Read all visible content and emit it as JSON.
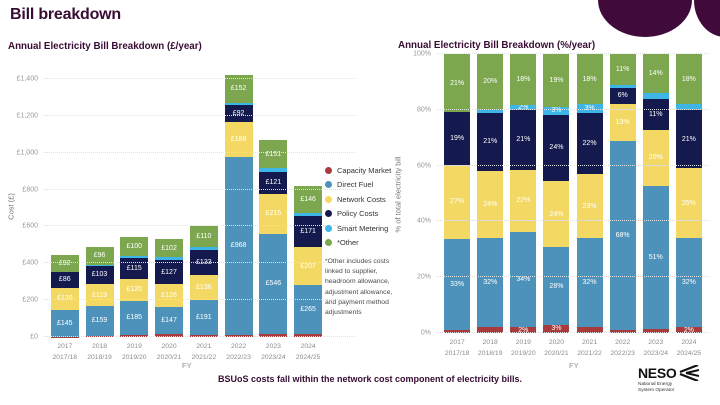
{
  "header": {
    "title": "Bill breakdown"
  },
  "footer": {
    "text": "BSUoS costs fall within the network cost component of electricity bills."
  },
  "logo": {
    "name": "NESO",
    "subtitle": "National Energy\nSystem Operator"
  },
  "colors": {
    "capacity_market": "#a93b3d",
    "direct_fuel": "#4d92bb",
    "network_costs": "#f3d964",
    "policy_costs": "#141a4e",
    "smart_metering": "#3db5e6",
    "other": "#7ca74f",
    "accent_plum": "#380c33",
    "decoration": "#400b3a"
  },
  "legend": {
    "items": [
      {
        "key": "capacity_market",
        "label": "Capacity Market"
      },
      {
        "key": "direct_fuel",
        "label": "Direct Fuel"
      },
      {
        "key": "network_costs",
        "label": "Network Costs"
      },
      {
        "key": "policy_costs",
        "label": "Policy Costs"
      },
      {
        "key": "smart_metering",
        "label": "Smart Metering"
      },
      {
        "key": "other",
        "label": "*Other"
      }
    ],
    "note": "*Other includes costs\nlinked to supplier,\nheadroom allowance,\nadjustment allowance,\nand payment method\nadjustments"
  },
  "chart_data": [
    {
      "type": "bar",
      "stacked": true,
      "normalize": false,
      "title": "Annual Electricity Bill Breakdown (£/year)",
      "xlabel": "FY",
      "ylabel": "Cost (£)",
      "ymax": 1400,
      "yticks": [
        {
          "v": 0,
          "t": "£0"
        },
        {
          "v": 200,
          "t": "£200"
        },
        {
          "v": 400,
          "t": "£400"
        },
        {
          "v": 600,
          "t": "£600"
        },
        {
          "v": 800,
          "t": "£800"
        },
        {
          "v": 1000,
          "t": "£1,000"
        },
        {
          "v": 1200,
          "t": "£1,200"
        },
        {
          "v": 1400,
          "t": "£1,400"
        }
      ],
      "categories": [
        [
          "2017",
          "2017/18"
        ],
        [
          "2018",
          "2018/19"
        ],
        [
          "2019",
          "2019/20"
        ],
        [
          "2020",
          "2020/21"
        ],
        [
          "2021",
          "2021/22"
        ],
        [
          "2022",
          "2022/23"
        ],
        [
          "2023",
          "2023/24"
        ],
        [
          "2024",
          "2024/25"
        ]
      ],
      "bars": [
        [
          {
            "k": "capacity_market",
            "v": 2,
            "l": ""
          },
          {
            "k": "direct_fuel",
            "v": 145,
            "l": "£145"
          },
          {
            "k": "network_costs",
            "v": 120,
            "l": "£120"
          },
          {
            "k": "policy_costs",
            "v": 86,
            "l": "£86"
          },
          {
            "k": "other",
            "v": 92,
            "l": "£92"
          }
        ],
        [
          {
            "k": "capacity_market",
            "v": 8,
            "l": ""
          },
          {
            "k": "direct_fuel",
            "v": 159,
            "l": "£159"
          },
          {
            "k": "network_costs",
            "v": 119,
            "l": "£119"
          },
          {
            "k": "policy_costs",
            "v": 103,
            "l": "£103"
          },
          {
            "k": "smart_metering",
            "v": 4,
            "l": ""
          },
          {
            "k": "other",
            "v": 96,
            "l": "£96"
          }
        ],
        [
          {
            "k": "capacity_market",
            "v": 11,
            "l": ""
          },
          {
            "k": "direct_fuel",
            "v": 185,
            "l": "£185"
          },
          {
            "k": "network_costs",
            "v": 120,
            "l": "£120"
          },
          {
            "k": "policy_costs",
            "v": 115,
            "l": "£115"
          },
          {
            "k": "smart_metering",
            "v": 11,
            "l": ""
          },
          {
            "k": "other",
            "v": 100,
            "l": "£100"
          }
        ],
        [
          {
            "k": "capacity_market",
            "v": 16,
            "l": ""
          },
          {
            "k": "direct_fuel",
            "v": 147,
            "l": "£147"
          },
          {
            "k": "network_costs",
            "v": 126,
            "l": "£126"
          },
          {
            "k": "policy_costs",
            "v": 127,
            "l": "£127"
          },
          {
            "k": "smart_metering",
            "v": 16,
            "l": ""
          },
          {
            "k": "other",
            "v": 102,
            "l": "£102"
          }
        ],
        [
          {
            "k": "capacity_market",
            "v": 12,
            "l": ""
          },
          {
            "k": "direct_fuel",
            "v": 191,
            "l": "£191"
          },
          {
            "k": "network_costs",
            "v": 136,
            "l": "£136"
          },
          {
            "k": "policy_costs",
            "v": 133,
            "l": "£133"
          },
          {
            "k": "smart_metering",
            "v": 18,
            "l": ""
          },
          {
            "k": "other",
            "v": 110,
            "l": "£110"
          }
        ],
        [
          {
            "k": "capacity_market",
            "v": 10,
            "l": ""
          },
          {
            "k": "direct_fuel",
            "v": 968,
            "l": "£968"
          },
          {
            "k": "network_costs",
            "v": 188,
            "l": "£188"
          },
          {
            "k": "policy_costs",
            "v": 92,
            "l": "£92"
          },
          {
            "k": "smart_metering",
            "v": 14,
            "l": ""
          },
          {
            "k": "other",
            "v": 152,
            "l": "£152"
          }
        ],
        [
          {
            "k": "capacity_market",
            "v": 15,
            "l": ""
          },
          {
            "k": "direct_fuel",
            "v": 546,
            "l": "£546"
          },
          {
            "k": "network_costs",
            "v": 215,
            "l": "£215"
          },
          {
            "k": "policy_costs",
            "v": 121,
            "l": "£121"
          },
          {
            "k": "smart_metering",
            "v": 20,
            "l": ""
          },
          {
            "k": "other",
            "v": 151,
            "l": "£151"
          }
        ],
        [
          {
            "k": "capacity_market",
            "v": 16,
            "l": ""
          },
          {
            "k": "direct_fuel",
            "v": 265,
            "l": "£265"
          },
          {
            "k": "network_costs",
            "v": 207,
            "l": "£207"
          },
          {
            "k": "policy_costs",
            "v": 171,
            "l": "£171"
          },
          {
            "k": "smart_metering",
            "v": 16,
            "l": ""
          },
          {
            "k": "other",
            "v": 146,
            "l": "£146"
          }
        ]
      ]
    },
    {
      "type": "bar",
      "stacked": true,
      "normalize": true,
      "title": "Annual Electricity Bill Breakdown (%/year)",
      "xlabel": "FY",
      "ylabel": "% of total electricity bill",
      "ymax": 100,
      "yticks": [
        {
          "v": 0,
          "t": "0%"
        },
        {
          "v": 20,
          "t": "20%"
        },
        {
          "v": 40,
          "t": "40%"
        },
        {
          "v": 60,
          "t": "60%"
        },
        {
          "v": 80,
          "t": "80%"
        },
        {
          "v": 100,
          "t": "100%"
        }
      ],
      "categories": [
        [
          "2017",
          "2017/18"
        ],
        [
          "2018",
          "2018/19"
        ],
        [
          "2019",
          "2019/20"
        ],
        [
          "2020",
          "2020/21"
        ],
        [
          "2021",
          "2021/22"
        ],
        [
          "2022",
          "2022/23"
        ],
        [
          "2023",
          "2023/24"
        ],
        [
          "2024",
          "2024/25"
        ]
      ],
      "bars": [
        [
          {
            "k": "capacity_market",
            "v": 1,
            "l": ""
          },
          {
            "k": "direct_fuel",
            "v": 33,
            "l": "33%"
          },
          {
            "k": "network_costs",
            "v": 27,
            "l": "27%"
          },
          {
            "k": "policy_costs",
            "v": 19,
            "l": "19%"
          },
          {
            "k": "other",
            "v": 21,
            "l": "21%"
          }
        ],
        [
          {
            "k": "capacity_market",
            "v": 2,
            "l": ""
          },
          {
            "k": "direct_fuel",
            "v": 32,
            "l": "32%"
          },
          {
            "k": "network_costs",
            "v": 24,
            "l": "24%"
          },
          {
            "k": "policy_costs",
            "v": 21,
            "l": "21%"
          },
          {
            "k": "smart_metering",
            "v": 1,
            "l": ""
          },
          {
            "k": "other",
            "v": 20,
            "l": "20%"
          }
        ],
        [
          {
            "k": "capacity_market",
            "v": 2,
            "l": "2%"
          },
          {
            "k": "direct_fuel",
            "v": 34,
            "l": "34%"
          },
          {
            "k": "network_costs",
            "v": 22,
            "l": "22%"
          },
          {
            "k": "policy_costs",
            "v": 21,
            "l": "21%"
          },
          {
            "k": "smart_metering",
            "v": 2,
            "l": "2%"
          },
          {
            "k": "other",
            "v": 18,
            "l": "18%"
          }
        ],
        [
          {
            "k": "capacity_market",
            "v": 3,
            "l": "3%"
          },
          {
            "k": "direct_fuel",
            "v": 28,
            "l": "28%"
          },
          {
            "k": "network_costs",
            "v": 24,
            "l": "24%"
          },
          {
            "k": "policy_costs",
            "v": 24,
            "l": "24%"
          },
          {
            "k": "smart_metering",
            "v": 3,
            "l": "3%"
          },
          {
            "k": "other",
            "v": 19,
            "l": "19%"
          }
        ],
        [
          {
            "k": "capacity_market",
            "v": 2,
            "l": ""
          },
          {
            "k": "direct_fuel",
            "v": 32,
            "l": "32%"
          },
          {
            "k": "network_costs",
            "v": 23,
            "l": "23%"
          },
          {
            "k": "policy_costs",
            "v": 22,
            "l": "22%"
          },
          {
            "k": "smart_metering",
            "v": 3,
            "l": "3%"
          },
          {
            "k": "other",
            "v": 18,
            "l": "18%"
          }
        ],
        [
          {
            "k": "capacity_market",
            "v": 1,
            "l": ""
          },
          {
            "k": "direct_fuel",
            "v": 68,
            "l": "68%"
          },
          {
            "k": "network_costs",
            "v": 13,
            "l": "13%"
          },
          {
            "k": "policy_costs",
            "v": 6,
            "l": "6%"
          },
          {
            "k": "smart_metering",
            "v": 1,
            "l": ""
          },
          {
            "k": "other",
            "v": 11,
            "l": "11%"
          }
        ],
        [
          {
            "k": "capacity_market",
            "v": 1.5,
            "l": ""
          },
          {
            "k": "direct_fuel",
            "v": 51,
            "l": "51%"
          },
          {
            "k": "network_costs",
            "v": 20,
            "l": "20%"
          },
          {
            "k": "policy_costs",
            "v": 11,
            "l": "11%"
          },
          {
            "k": "smart_metering",
            "v": 2,
            "l": ""
          },
          {
            "k": "other",
            "v": 14,
            "l": "14%"
          }
        ],
        [
          {
            "k": "capacity_market",
            "v": 2,
            "l": "2%"
          },
          {
            "k": "direct_fuel",
            "v": 32,
            "l": "32%"
          },
          {
            "k": "network_costs",
            "v": 25,
            "l": "25%"
          },
          {
            "k": "policy_costs",
            "v": 21,
            "l": "21%"
          },
          {
            "k": "smart_metering",
            "v": 2,
            "l": ""
          },
          {
            "k": "other",
            "v": 18,
            "l": "18%"
          }
        ]
      ]
    }
  ]
}
